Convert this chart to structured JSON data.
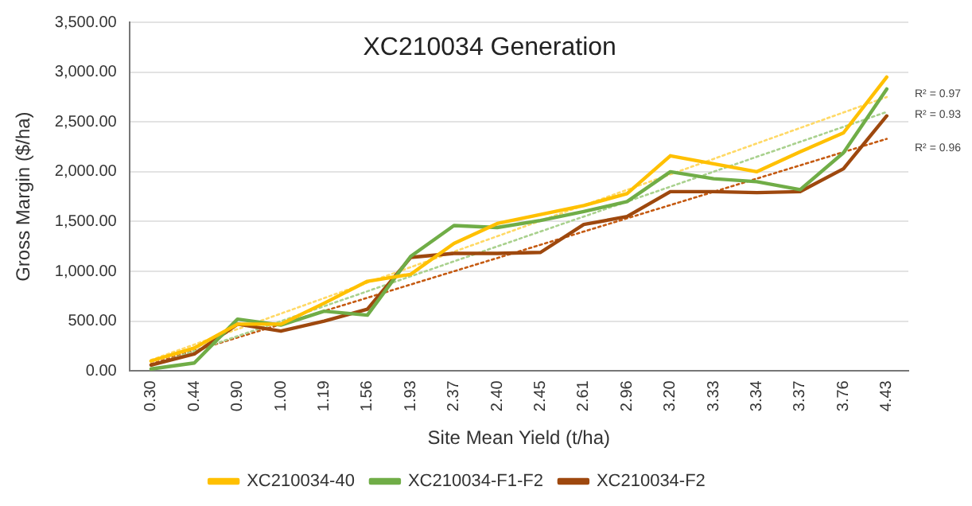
{
  "chart_data": {
    "type": "line",
    "title": "XC210034 Generation",
    "xlabel": "Site Mean Yield (t/ha)",
    "ylabel": "Gross Margin ($/ha)",
    "categories": [
      "0.30",
      "0.44",
      "0.90",
      "1.00",
      "1.19",
      "1.56",
      "1.93",
      "2.37",
      "2.40",
      "2.45",
      "2.61",
      "2.96",
      "3.20",
      "3.33",
      "3.34",
      "3.37",
      "3.76",
      "4.43"
    ],
    "series": [
      {
        "name": "XC210034-40",
        "color": "#ffc000",
        "values": [
          100,
          230,
          470,
          470,
          680,
          900,
          970,
          1280,
          1480,
          1570,
          1660,
          1780,
          2160,
          2080,
          2000,
          2200,
          2390,
          2950
        ]
      },
      {
        "name": "XC210034-F1-F2",
        "color": "#70ad47",
        "values": [
          20,
          80,
          520,
          460,
          600,
          560,
          1150,
          1460,
          1440,
          1510,
          1600,
          1700,
          2000,
          1930,
          1900,
          1820,
          2190,
          2830
        ]
      },
      {
        "name": "XC210034-F2",
        "color": "#9e480e",
        "values": [
          60,
          170,
          470,
          400,
          500,
          620,
          1140,
          1180,
          1180,
          1190,
          1470,
          1550,
          1800,
          1800,
          1790,
          1800,
          2030,
          2560
        ]
      },
      {
        "type": "line",
        "line_style": "dotted",
        "color": "#ffd966",
        "x": [
          "0.30",
          "4.43"
        ],
        "values": [
          110,
          2750
        ]
      },
      {
        "type": "line",
        "line_style": "dotted",
        "color": "#a9d18e",
        "x": [
          "0.30",
          "4.43"
        ],
        "values": [
          50,
          2600
        ]
      },
      {
        "type": "line",
        "line_style": "dotted",
        "color": "#c55a11",
        "x": [
          "0.30",
          "4.43"
        ],
        "values": [
          70,
          2330
        ]
      }
    ],
    "annotations": [
      {
        "text": "R² = 0.97",
        "x": "4.43",
        "y": 2780
      },
      {
        "text": "R² = 0.93",
        "x": "4.43",
        "y": 2570
      },
      {
        "text": "R² = 0.96",
        "x": "4.43",
        "y": 2240
      }
    ],
    "ylim": [
      0,
      3500
    ],
    "yticks": [
      {
        "value": 0,
        "label": "0.00"
      },
      {
        "value": 500,
        "label": "500.00"
      },
      {
        "value": 1000,
        "label": "1,000.00"
      },
      {
        "value": 1500,
        "label": "1,500.00"
      },
      {
        "value": 2000,
        "label": "2,000.00"
      },
      {
        "value": 2500,
        "label": "2,500.00"
      },
      {
        "value": 3000,
        "label": "3,000.00"
      },
      {
        "value": 3500,
        "label": "3,500.00"
      }
    ],
    "grid": "y",
    "legend": "bottom",
    "marker": "none",
    "line_style": "solid"
  }
}
